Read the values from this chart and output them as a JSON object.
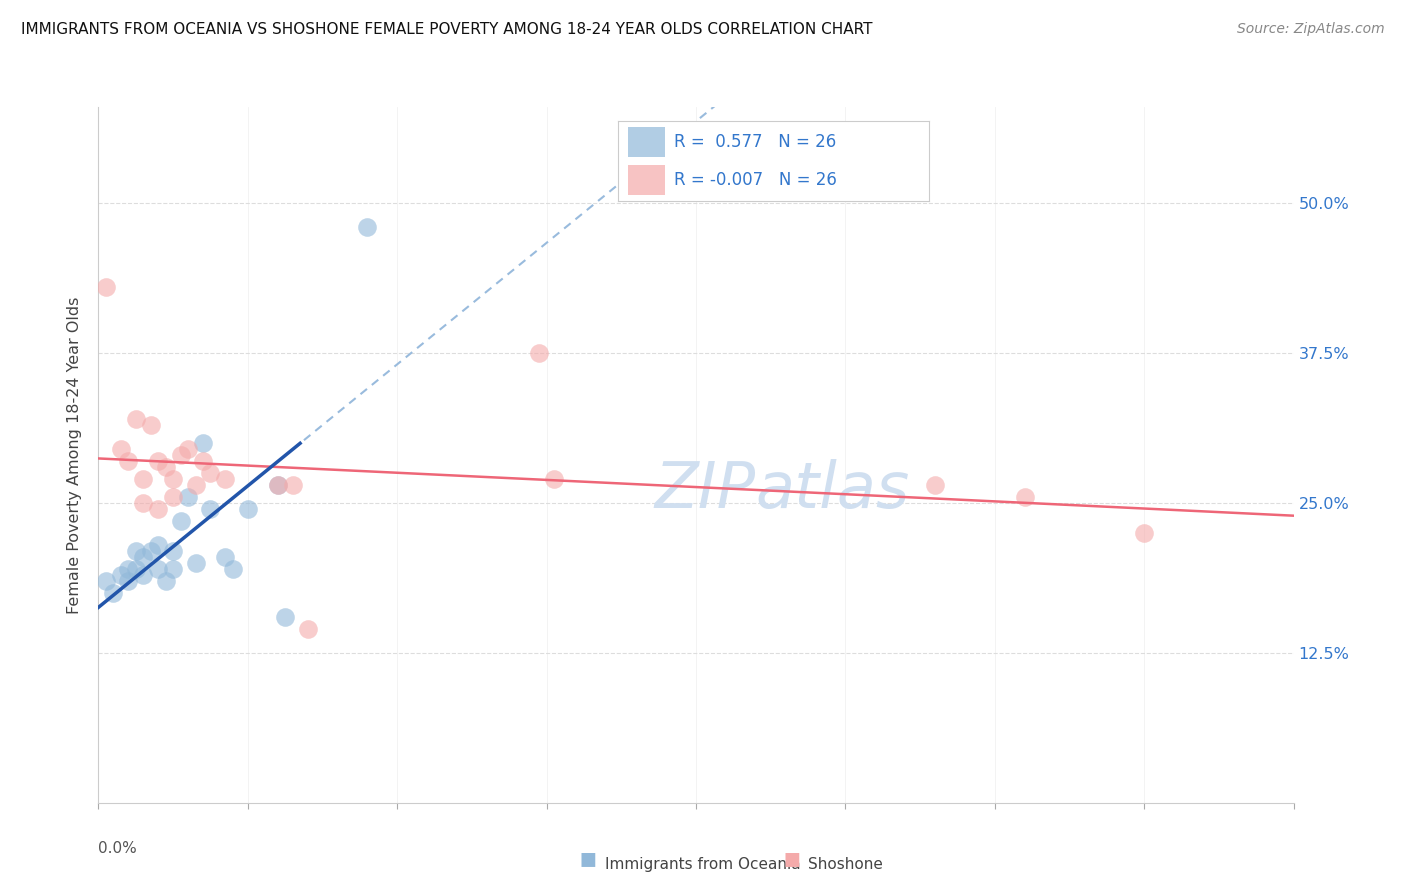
{
  "title": "IMMIGRANTS FROM OCEANIA VS SHOSHONE FEMALE POVERTY AMONG 18-24 YEAR OLDS CORRELATION CHART",
  "source": "Source: ZipAtlas.com",
  "ylabel": "Female Poverty Among 18-24 Year Olds",
  "ytick_values": [
    0.0,
    0.125,
    0.25,
    0.375,
    0.5
  ],
  "xlim": [
    0.0,
    0.8
  ],
  "ylim": [
    0.0,
    0.58
  ],
  "legend_r_blue": "0.577",
  "legend_n_blue": "26",
  "legend_r_pink": "-0.007",
  "legend_n_pink": "26",
  "blue_color": "#91B8D9",
  "pink_color": "#F4AAAA",
  "trend_blue_solid_color": "#2255AA",
  "trend_pink_color": "#EE6677",
  "trend_dash_color": "#99BBDD",
  "watermark_color": "#D0DFF0",
  "blue_scatter_x": [
    0.005,
    0.01,
    0.015,
    0.02,
    0.02,
    0.025,
    0.025,
    0.03,
    0.03,
    0.035,
    0.04,
    0.04,
    0.045,
    0.05,
    0.05,
    0.055,
    0.06,
    0.065,
    0.07,
    0.075,
    0.085,
    0.09,
    0.1,
    0.12,
    0.125,
    0.18
  ],
  "blue_scatter_y": [
    0.185,
    0.175,
    0.19,
    0.185,
    0.195,
    0.21,
    0.195,
    0.205,
    0.19,
    0.21,
    0.195,
    0.215,
    0.185,
    0.21,
    0.195,
    0.235,
    0.255,
    0.2,
    0.3,
    0.245,
    0.205,
    0.195,
    0.245,
    0.265,
    0.155,
    0.48
  ],
  "pink_scatter_x": [
    0.005,
    0.015,
    0.02,
    0.025,
    0.03,
    0.03,
    0.035,
    0.04,
    0.04,
    0.045,
    0.05,
    0.05,
    0.055,
    0.06,
    0.065,
    0.07,
    0.075,
    0.085,
    0.12,
    0.13,
    0.14,
    0.295,
    0.305,
    0.56,
    0.62,
    0.7
  ],
  "pink_scatter_y": [
    0.43,
    0.295,
    0.285,
    0.32,
    0.25,
    0.27,
    0.315,
    0.285,
    0.245,
    0.28,
    0.27,
    0.255,
    0.29,
    0.295,
    0.265,
    0.285,
    0.275,
    0.27,
    0.265,
    0.265,
    0.145,
    0.375,
    0.27,
    0.265,
    0.255,
    0.225
  ],
  "background_color": "#FFFFFF",
  "plot_bg_color": "#FFFFFF",
  "grid_color": "#DDDDDD",
  "spine_color": "#CCCCCC",
  "ytick_right_color": "#3377CC",
  "title_color": "#111111",
  "source_color": "#888888"
}
